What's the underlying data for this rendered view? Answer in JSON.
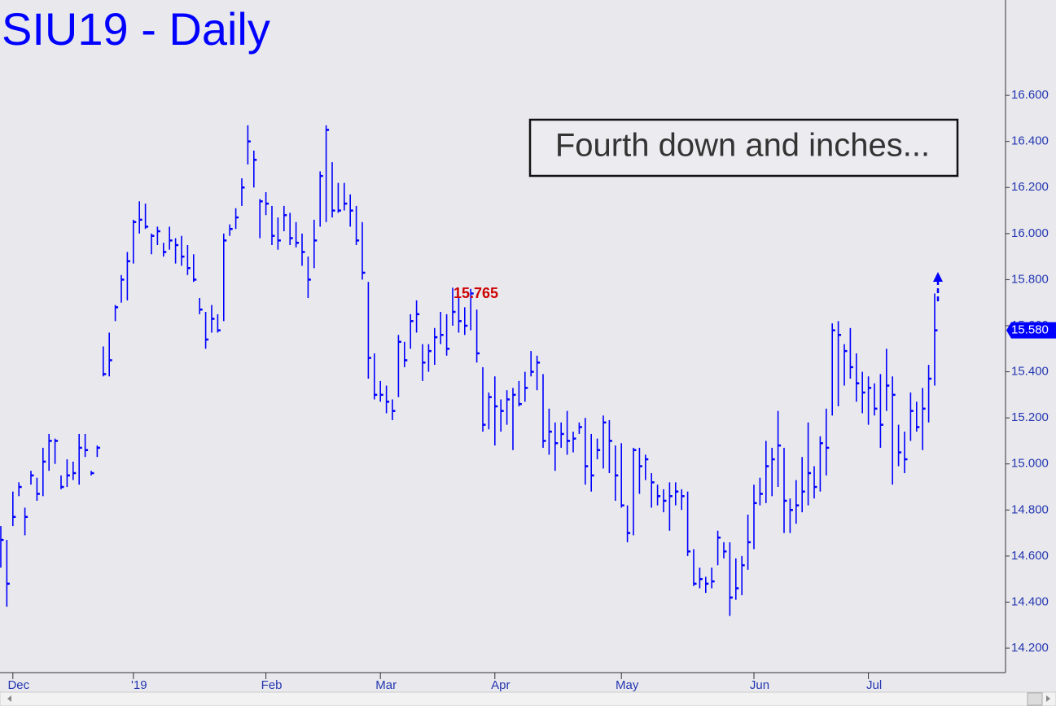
{
  "chart_data": {
    "type": "ohlc",
    "title": "SIU19 - Daily",
    "callout": "Fourth down and inches...",
    "color": "#0000ff",
    "annotation": {
      "text": "15.765",
      "value": 15.765,
      "index": 75
    },
    "last_price": {
      "value": 15.58,
      "label": "15.580"
    },
    "ylim": [
      14.094,
      17.014
    ],
    "yticks": [
      {
        "value": 14.2,
        "label": "14.200"
      },
      {
        "value": 14.4,
        "label": "14.400"
      },
      {
        "value": 14.6,
        "label": "14.600"
      },
      {
        "value": 14.8,
        "label": "14.800"
      },
      {
        "value": 15.0,
        "label": "15.000"
      },
      {
        "value": 15.2,
        "label": "15.200"
      },
      {
        "value": 15.4,
        "label": "15.400"
      },
      {
        "value": 15.6,
        "label": "15.600"
      },
      {
        "value": 15.8,
        "label": "15.800"
      },
      {
        "value": 16.0,
        "label": "16.000"
      },
      {
        "value": 16.2,
        "label": "16.200"
      },
      {
        "value": 16.4,
        "label": "16.400"
      },
      {
        "value": 16.6,
        "label": "16.600"
      }
    ],
    "categories": [
      null,
      null,
      "Dec",
      null,
      null,
      null,
      null,
      null,
      null,
      null,
      null,
      null,
      null,
      null,
      null,
      null,
      null,
      null,
      null,
      null,
      null,
      null,
      "'19",
      null,
      null,
      null,
      null,
      null,
      null,
      null,
      null,
      null,
      null,
      null,
      null,
      null,
      null,
      null,
      null,
      null,
      null,
      null,
      null,
      null,
      "Feb",
      null,
      null,
      null,
      null,
      null,
      null,
      null,
      null,
      null,
      null,
      null,
      null,
      null,
      null,
      null,
      null,
      null,
      null,
      "Mar",
      null,
      null,
      null,
      null,
      null,
      null,
      null,
      null,
      null,
      null,
      null,
      null,
      null,
      null,
      null,
      null,
      null,
      null,
      "Apr",
      null,
      null,
      null,
      null,
      null,
      null,
      null,
      null,
      null,
      null,
      null,
      null,
      null,
      null,
      null,
      null,
      null,
      null,
      null,
      null,
      "May",
      null,
      null,
      null,
      null,
      null,
      null,
      null,
      null,
      null,
      null,
      null,
      null,
      null,
      null,
      null,
      null,
      null,
      null,
      null,
      null,
      null,
      "Jun",
      null,
      null,
      null,
      null,
      null,
      null,
      null,
      null,
      null,
      null,
      null,
      null,
      null,
      null,
      null,
      null,
      null,
      null,
      "Jul",
      null,
      null,
      null,
      null,
      null,
      null,
      null,
      null,
      null,
      null,
      null
    ],
    "high": [
      14.73,
      14.67,
      14.88,
      14.92,
      14.81,
      14.97,
      14.94,
      15.07,
      15.13,
      15.11,
      14.95,
      15.02,
      15.01,
      15.13,
      15.13,
      14.97,
      15.08,
      15.51,
      15.57,
      15.69,
      15.82,
      15.92,
      16.06,
      16.14,
      16.13,
      16.0,
      16.03,
      15.96,
      16.03,
      15.98,
      15.99,
      15.95,
      15.91,
      15.72,
      15.66,
      15.69,
      15.65,
      16.0,
      16.04,
      16.11,
      16.24,
      16.47,
      16.36,
      16.15,
      16.18,
      16.12,
      16.07,
      16.12,
      16.09,
      16.05,
      16.0,
      15.9,
      16.06,
      16.27,
      16.47,
      16.31,
      16.22,
      16.22,
      16.17,
      16.12,
      16.05,
      15.79,
      15.48,
      15.36,
      15.34,
      15.28,
      15.56,
      15.53,
      15.65,
      15.71,
      15.52,
      15.52,
      15.59,
      15.66,
      15.65,
      15.765,
      15.72,
      15.68,
      15.76,
      15.67,
      15.42,
      15.31,
      15.38,
      15.28,
      15.32,
      15.33,
      15.36,
      15.4,
      15.49,
      15.47,
      15.39,
      15.24,
      15.18,
      15.18,
      15.23,
      15.14,
      15.18,
      15.2,
      15.13,
      15.11,
      15.21,
      15.19,
      15.08,
      15.09,
      14.82,
      15.07,
      15.07,
      15.04,
      14.96,
      14.91,
      14.89,
      14.92,
      14.92,
      14.89,
      14.88,
      14.63,
      14.55,
      14.51,
      14.55,
      14.71,
      14.66,
      14.66,
      14.59,
      14.6,
      14.78,
      14.91,
      14.94,
      15.1,
      15.07,
      15.23,
      15.07,
      14.85,
      14.93,
      15.03,
      15.18,
      14.99,
      15.12,
      15.24,
      15.61,
      15.62,
      15.52,
      15.59,
      15.48,
      15.4,
      15.38,
      15.35,
      15.39,
      15.5,
      15.38,
      15.17,
      15.14,
      15.31,
      15.27,
      15.33,
      15.43,
      15.74
    ],
    "low": [
      14.55,
      14.38,
      14.73,
      14.86,
      14.69,
      14.91,
      14.84,
      14.86,
      14.97,
      15.0,
      14.89,
      14.9,
      14.93,
      14.91,
      15.03,
      14.95,
      15.03,
      15.38,
      15.38,
      15.62,
      15.7,
      15.71,
      15.87,
      16.0,
      16.02,
      15.91,
      15.95,
      15.9,
      15.93,
      15.87,
      15.86,
      15.82,
      15.79,
      15.65,
      15.5,
      15.57,
      15.57,
      15.62,
      15.99,
      16.02,
      16.12,
      16.3,
      16.2,
      15.98,
      16.08,
      15.95,
      15.93,
      16.01,
      15.95,
      15.94,
      15.86,
      15.72,
      15.85,
      16.03,
      16.05,
      16.07,
      16.09,
      16.1,
      16.03,
      15.95,
      15.8,
      15.37,
      15.28,
      15.27,
      15.22,
      15.19,
      15.29,
      15.42,
      15.5,
      15.57,
      15.36,
      15.4,
      15.43,
      15.52,
      15.47,
      15.6,
      15.57,
      15.56,
      15.58,
      15.44,
      15.14,
      15.15,
      15.08,
      15.14,
      15.17,
      15.06,
      15.25,
      15.27,
      15.38,
      15.32,
      15.07,
      15.04,
      14.97,
      15.07,
      15.04,
      15.05,
      15.13,
      14.91,
      14.88,
      15.02,
      14.98,
      14.96,
      14.84,
      14.81,
      14.66,
      14.69,
      14.87,
      14.93,
      14.81,
      14.82,
      14.79,
      14.71,
      14.82,
      14.8,
      14.6,
      14.47,
      14.46,
      14.44,
      14.46,
      14.56,
      14.59,
      14.34,
      14.41,
      14.43,
      14.54,
      14.63,
      14.82,
      14.83,
      14.86,
      14.9,
      14.7,
      14.7,
      14.74,
      14.79,
      14.82,
      14.85,
      14.88,
      14.95,
      15.21,
      15.25,
      15.34,
      15.37,
      15.27,
      15.22,
      15.17,
      15.21,
      15.07,
      15.23,
      14.91,
      14.99,
      14.96,
      15.1,
      15.14,
      15.06,
      15.18,
      15.34
    ],
    "close": [
      14.67,
      14.48,
      14.77,
      14.9,
      14.77,
      14.95,
      14.87,
      15.01,
      15.1,
      15.1,
      14.9,
      14.95,
      14.96,
      15.07,
      15.06,
      14.96,
      15.07,
      15.39,
      15.45,
      15.68,
      15.8,
      15.88,
      16.05,
      16.06,
      16.03,
      15.99,
      16.01,
      15.92,
      15.97,
      15.95,
      15.9,
      15.85,
      15.8,
      15.67,
      15.54,
      15.63,
      15.58,
      15.97,
      16.02,
      16.07,
      16.2,
      16.4,
      16.32,
      16.14,
      16.13,
      15.99,
      15.97,
      16.08,
      15.98,
      15.96,
      15.92,
      15.8,
      15.97,
      16.25,
      16.45,
      16.1,
      16.1,
      16.13,
      16.1,
      15.97,
      15.83,
      15.46,
      15.3,
      15.3,
      15.27,
      15.23,
      15.53,
      15.45,
      15.62,
      15.65,
      15.44,
      15.49,
      15.55,
      15.56,
      15.5,
      15.66,
      15.62,
      15.6,
      15.74,
      15.48,
      15.17,
      15.29,
      15.25,
      15.23,
      15.28,
      15.3,
      15.26,
      15.33,
      15.4,
      15.44,
      15.1,
      15.14,
      15.09,
      15.13,
      15.1,
      15.11,
      15.16,
      14.99,
      14.95,
      15.06,
      15.18,
      15.1,
      14.95,
      14.82,
      14.7,
      15.06,
      14.99,
      15.02,
      14.92,
      14.86,
      14.84,
      14.86,
      14.88,
      14.86,
      14.62,
      14.48,
      14.5,
      14.48,
      14.49,
      14.68,
      14.62,
      14.42,
      14.46,
      14.56,
      14.66,
      14.83,
      14.87,
      14.99,
      15.02,
      15.08,
      14.84,
      14.8,
      14.82,
      14.88,
      14.96,
      14.9,
      15.09,
      15.07,
      15.58,
      15.56,
      15.49,
      15.42,
      15.35,
      15.31,
      15.33,
      15.24,
      15.17,
      15.34,
      15.3,
      15.05,
      15.02,
      15.23,
      15.16,
      15.24,
      15.37,
      15.58
    ]
  }
}
